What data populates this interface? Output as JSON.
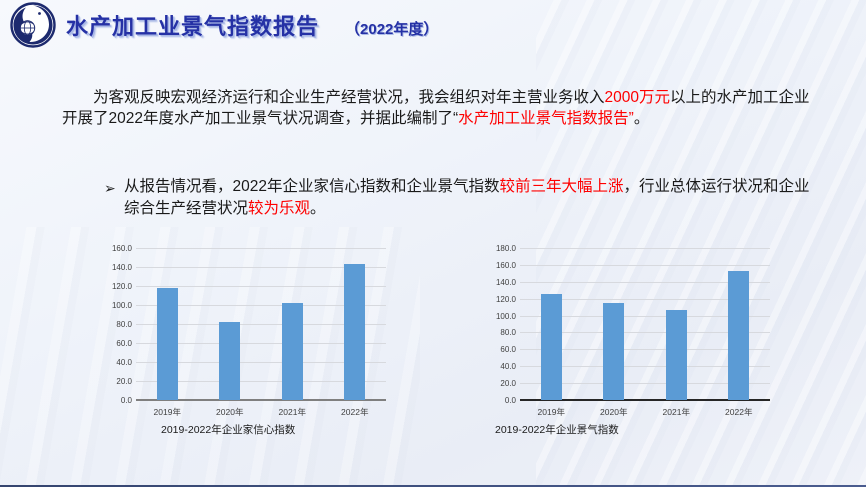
{
  "header": {
    "title": "水产加工业景气指数报告",
    "subtitle": "（2022年度）",
    "logo_icon": "organization-emblem"
  },
  "intro": {
    "part1": "为客观反映宏观经济运行和企业生产经营状况，我会组织对年主营业务收入",
    "highlight1": "2000万元",
    "part2": "以上的水产加工企业开展了2022年度水产加工业景气状况调查，并据此编制了“",
    "highlight2": "水产加工业景气指数报告”",
    "part3": "。"
  },
  "bullet": {
    "marker": "➢",
    "part1": "从报告情况看，2022年企业家信心指数和企业景气指数",
    "highlight1": "较前三年大幅上涨",
    "part2": "，行业总体运行状况和企业综合生产经营状况",
    "highlight2": "较为乐观",
    "part3": "。"
  },
  "colors": {
    "title_blue": "#2531a5",
    "highlight_red": "#fe0000",
    "bar_blue": "#5b9bd5",
    "gridline_gray": "#d7d9de",
    "axis_text_gray": "#404040"
  },
  "chart_data": [
    {
      "type": "bar",
      "title": "2019-2022年企业家信心指数",
      "categories": [
        "2019年",
        "2020年",
        "2021年",
        "2022年"
      ],
      "values": [
        117.5,
        82.0,
        102.0,
        143.5
      ],
      "xlabel": "",
      "ylabel": "",
      "ylim": [
        0,
        160
      ],
      "ytick_step": 20,
      "grid": true,
      "legend_position": "none",
      "bar_color": "#5b9bd5",
      "axis_color": "#7f7f7f"
    },
    {
      "type": "bar",
      "title": "2019-2022年企业景气指数",
      "categories": [
        "2019年",
        "2020年",
        "2021年",
        "2022年"
      ],
      "values": [
        125.0,
        115.0,
        106.0,
        153.0
      ],
      "xlabel": "",
      "ylabel": "",
      "ylim": [
        0,
        180
      ],
      "ytick_step": 20,
      "grid": true,
      "legend_position": "none",
      "bar_color": "#5b9bd5",
      "axis_color": "#262626"
    }
  ]
}
